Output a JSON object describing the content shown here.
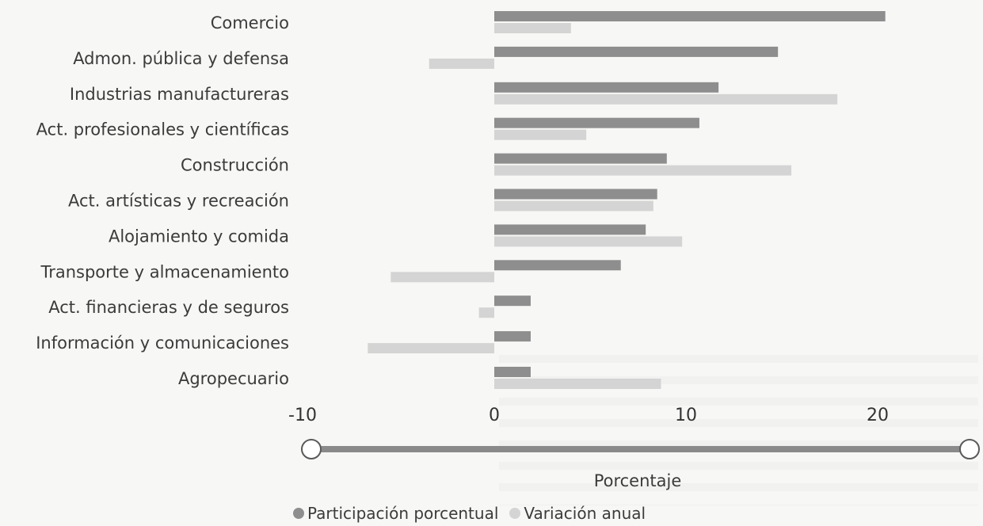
{
  "chart_data": {
    "type": "bar",
    "orientation": "horizontal",
    "categories": [
      "Comercio",
      "Admon. pública y defensa",
      "Industrias manufactureras",
      "Act. profesionales y científicas",
      "Construcción",
      "Act. artísticas y recreación",
      "Alojamiento y comida",
      "Transporte y almacenamiento",
      "Act. financieras y de seguros",
      "Información y comunicaciones",
      "Agropecuario"
    ],
    "series": [
      {
        "name": "Participación porcentual",
        "color": "#8e8e8e",
        "values": [
          20.4,
          14.8,
          11.7,
          10.7,
          9.0,
          8.5,
          7.9,
          6.6,
          1.9,
          1.9,
          1.9
        ]
      },
      {
        "name": "Variación anual",
        "color": "#d4d4d4",
        "values": [
          4.0,
          -3.4,
          17.9,
          4.8,
          15.5,
          8.3,
          9.8,
          -5.4,
          -0.8,
          -6.6,
          8.7
        ]
      }
    ],
    "xticks": [
      "-10",
      "0",
      "10",
      "20"
    ],
    "xlim": [
      -10,
      24.4
    ],
    "xlabel": "Porcentaje",
    "title": "",
    "ylabel": "",
    "legend_position": "bottom"
  }
}
